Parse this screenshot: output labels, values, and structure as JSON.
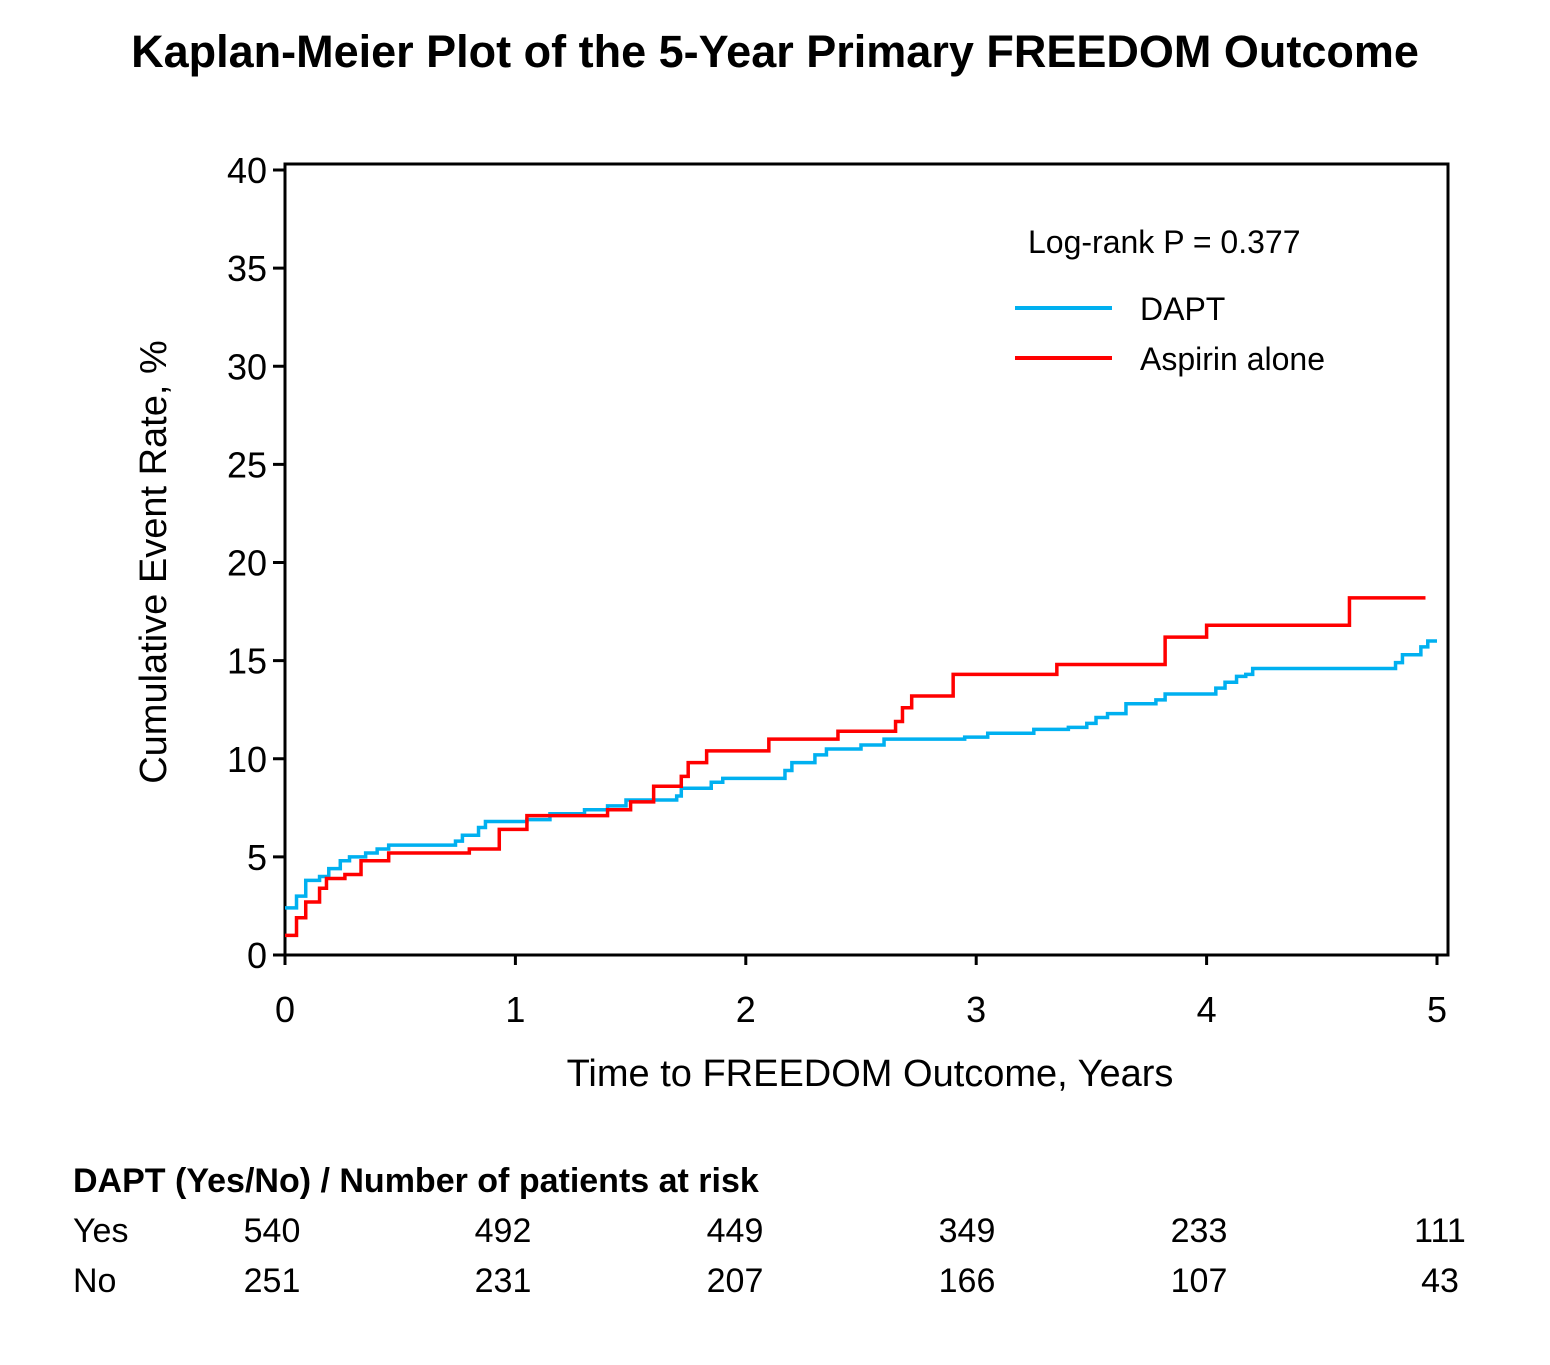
{
  "chart_data": {
    "type": "line",
    "title": "Kaplan-Meier Plot of the 5-Year Primary FREEDOM Outcome",
    "xlabel": "Time to FREEDOM Outcome, Years",
    "ylabel": "Cumulative Event Rate, %",
    "xlim": [
      0,
      5
    ],
    "ylim": [
      0,
      40
    ],
    "xticks": [
      0,
      1,
      2,
      3,
      4,
      5
    ],
    "yticks": [
      0,
      5,
      10,
      15,
      20,
      25,
      30,
      35,
      40
    ],
    "grid": false,
    "legend_position": "top-right",
    "annotation": "Log-rank P = 0.377",
    "series": [
      {
        "name": "DAPT",
        "color": "#00b0f0",
        "step": true,
        "x": [
          0,
          0.05,
          0.09,
          0.15,
          0.19,
          0.24,
          0.28,
          0.35,
          0.4,
          0.45,
          0.74,
          0.77,
          0.84,
          0.87,
          1.05,
          1.15,
          1.3,
          1.4,
          1.48,
          1.7,
          1.72,
          1.85,
          1.9,
          2.17,
          2.2,
          2.3,
          2.35,
          2.5,
          2.6,
          2.95,
          3.05,
          3.25,
          3.4,
          3.48,
          3.52,
          3.57,
          3.65,
          3.78,
          3.82,
          4.04,
          4.08,
          4.13,
          4.17,
          4.2,
          4.82,
          4.85,
          4.93,
          4.96,
          5.0
        ],
        "y": [
          2.4,
          3.0,
          3.8,
          4.0,
          4.4,
          4.8,
          5.0,
          5.2,
          5.4,
          5.6,
          5.8,
          6.1,
          6.5,
          6.8,
          6.9,
          7.2,
          7.4,
          7.6,
          7.9,
          8.1,
          8.5,
          8.8,
          9.0,
          9.4,
          9.8,
          10.2,
          10.5,
          10.7,
          11.0,
          11.1,
          11.3,
          11.5,
          11.6,
          11.8,
          12.1,
          12.3,
          12.8,
          13.0,
          13.3,
          13.6,
          13.9,
          14.2,
          14.3,
          14.6,
          14.9,
          15.3,
          15.7,
          16.0,
          16.0
        ]
      },
      {
        "name": "Aspirin alone",
        "color": "#ff0000",
        "step": true,
        "x": [
          0,
          0.05,
          0.09,
          0.15,
          0.18,
          0.26,
          0.33,
          0.45,
          0.8,
          0.93,
          1.05,
          1.4,
          1.5,
          1.6,
          1.72,
          1.75,
          1.83,
          2.1,
          2.4,
          2.65,
          2.68,
          2.72,
          2.9,
          3.35,
          3.82,
          4.0,
          4.62,
          4.95
        ],
        "y": [
          1.0,
          1.9,
          2.7,
          3.4,
          3.9,
          4.1,
          4.8,
          5.2,
          5.4,
          6.4,
          7.1,
          7.4,
          7.8,
          8.6,
          9.1,
          9.8,
          10.4,
          11.0,
          11.4,
          11.9,
          12.6,
          13.2,
          14.3,
          14.8,
          16.2,
          16.8,
          18.2,
          18.2
        ]
      }
    ]
  },
  "risk_table": {
    "header": "DAPT (Yes/No) / Number of patients at risk",
    "rows": [
      {
        "label": "Yes",
        "values": [
          "540",
          "492",
          "449",
          "349",
          "233",
          "111"
        ]
      },
      {
        "label": "No",
        "values": [
          "251",
          "231",
          "207",
          "166",
          "107",
          "43"
        ]
      }
    ]
  }
}
